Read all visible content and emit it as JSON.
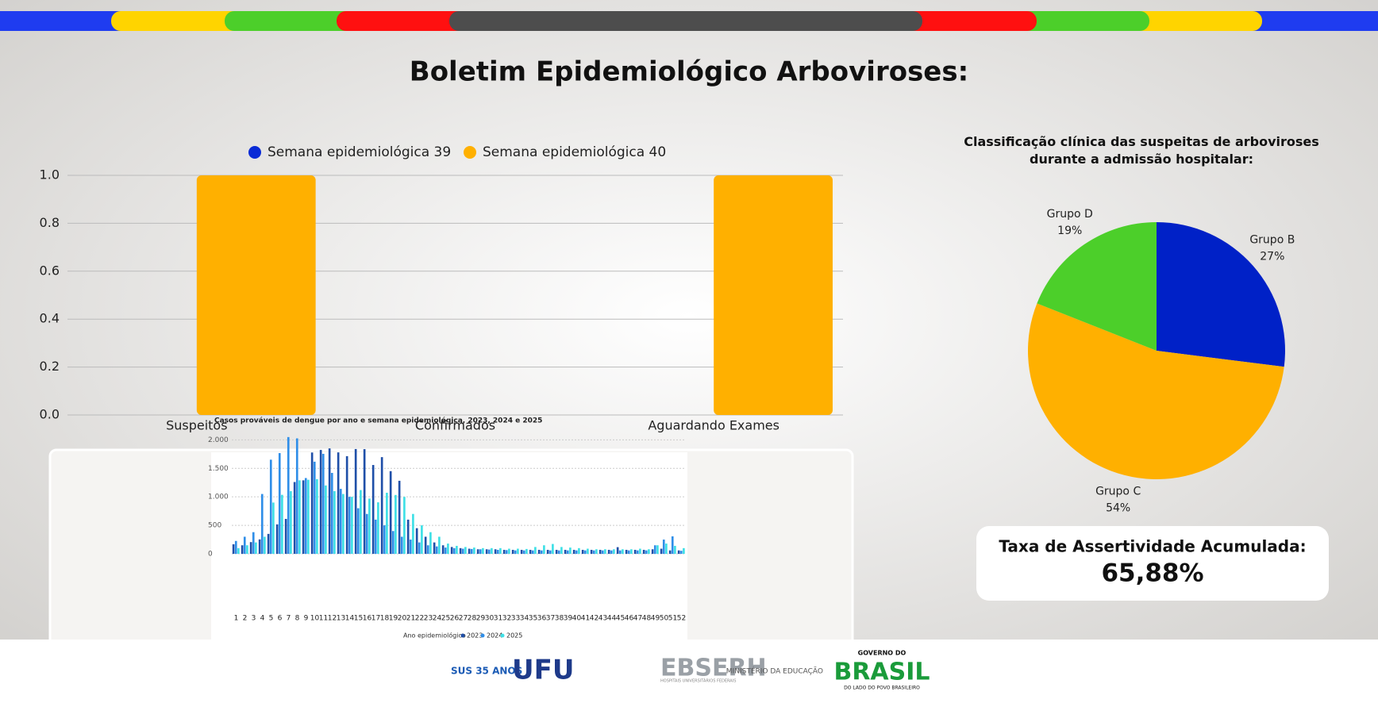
{
  "header": {
    "title": "Boletim Epidemiológico Arboviroses:"
  },
  "chart_data": [
    {
      "type": "bar",
      "categories": [
        "Suspeitos",
        "Confirmados",
        "Aguardando Exames"
      ],
      "series": [
        {
          "name": "Semana epidemiológica 39",
          "color": "#0a2bd6",
          "values": [
            0,
            0,
            0
          ]
        },
        {
          "name": "Semana epidemiológica 40",
          "color": "#ffb000",
          "values": [
            1,
            0,
            1
          ]
        }
      ],
      "ylim": [
        0,
        1
      ],
      "yticks": [
        {
          "value": 0,
          "label": "0.0"
        },
        0.2,
        0.4,
        0.6,
        0.8,
        {
          "value": 1,
          "label": "1.0"
        }
      ],
      "grid": true,
      "legend": "top"
    },
    {
      "type": "pie",
      "title": "Classificação clínica das suspeitas de arboviroses durante a admissão hospitalar:",
      "categories": [
        "Grupo B",
        "Grupo C",
        "Grupo D"
      ],
      "values": [
        27,
        54,
        19
      ],
      "value_labels": [
        "27%",
        "54%",
        "19%"
      ],
      "colors": [
        "#0021c7",
        "#ffb000",
        "#4ccf2a"
      ]
    },
    {
      "type": "bar",
      "title": "Casos prováveis de dengue por ano e semana epidemiológica, 2023, 2024 e 2025",
      "x_label": "Ano epidemiológico",
      "categories": [
        "1",
        "2",
        "3",
        "4",
        "5",
        "6",
        "7",
        "8",
        "9",
        "10",
        "11",
        "12",
        "13",
        "14",
        "15",
        "16",
        "17",
        "18",
        "19",
        "20",
        "21",
        "22",
        "23",
        "24",
        "25",
        "26",
        "27",
        "28",
        "29",
        "30",
        "31",
        "32",
        "33",
        "34",
        "35",
        "36",
        "37",
        "38",
        "39",
        "40",
        "41",
        "42",
        "43",
        "44",
        "45",
        "46",
        "47",
        "48",
        "49",
        "50",
        "51",
        "52"
      ],
      "series": [
        {
          "name": "2023",
          "color": "#1f4fa8",
          "values": [
            168,
            150,
            206,
            253,
            350,
            517,
            613,
            1260,
            1290,
            1778,
            1823,
            1850,
            1780,
            1714,
            1839,
            1837,
            1559,
            1697,
            1451,
            1282,
            600,
            450,
            300,
            200,
            150,
            120,
            100,
            90,
            80,
            80,
            80,
            70,
            70,
            70,
            70,
            70,
            70,
            70,
            70,
            70,
            70,
            70,
            70,
            70,
            117,
            70,
            70,
            70,
            80,
            90,
            60,
            60
          ]
        },
        {
          "name": "2024",
          "color": "#2f8ee8",
          "values": [
            226,
            300,
            380,
            1050,
            1652,
            1768,
            2049,
            2026,
            1330,
            1617,
            1755,
            1420,
            1140,
            1000,
            800,
            700,
            600,
            500,
            400,
            300,
            250,
            200,
            150,
            130,
            110,
            100,
            90,
            85,
            80,
            75,
            70,
            65,
            60,
            60,
            60,
            60,
            60,
            60,
            60,
            60,
            60,
            60,
            60,
            60,
            60,
            60,
            60,
            60,
            150,
            250,
            307,
            54
          ]
        },
        {
          "name": "2025",
          "color": "#3ee0e6",
          "values": [
            100,
            150,
            200,
            300,
            900,
            1035,
            1100,
            1290,
            1300,
            1310,
            1200,
            1100,
            1050,
            1000,
            1119,
            970,
            904,
            1072,
            1033,
            999,
            700,
            500,
            380,
            300,
            180,
            140,
            120,
            110,
            100,
            100,
            100,
            90,
            90,
            85,
            120,
            150,
            173,
            120,
            110,
            100,
            90,
            80,
            80,
            80,
            80,
            80,
            90,
            80,
            150,
            180,
            140,
            100
          ]
        }
      ],
      "ylim": [
        0,
        2200
      ],
      "yticks": [
        0,
        500,
        {
          "value": 1000,
          "label": "1.000"
        },
        {
          "value": 1500,
          "label": "1.500"
        },
        {
          "value": 2000,
          "label": "2.000"
        }
      ],
      "grid": true,
      "legend": "bottom"
    }
  ],
  "kpi": {
    "label": "Taxa de Assertividade Acumulada:",
    "value": "65,88%"
  },
  "footer": {
    "logos": [
      "SUS 35 ANOS",
      "UFU",
      "EBSERH",
      "HOSPITAIS UNIVERSITÁRIOS FEDERAIS",
      "MINISTÉRIO DA EDUCAÇÃO",
      "GOVERNO DO",
      "BRASIL",
      "DO LADO DO POVO BRASILEIRO"
    ]
  }
}
